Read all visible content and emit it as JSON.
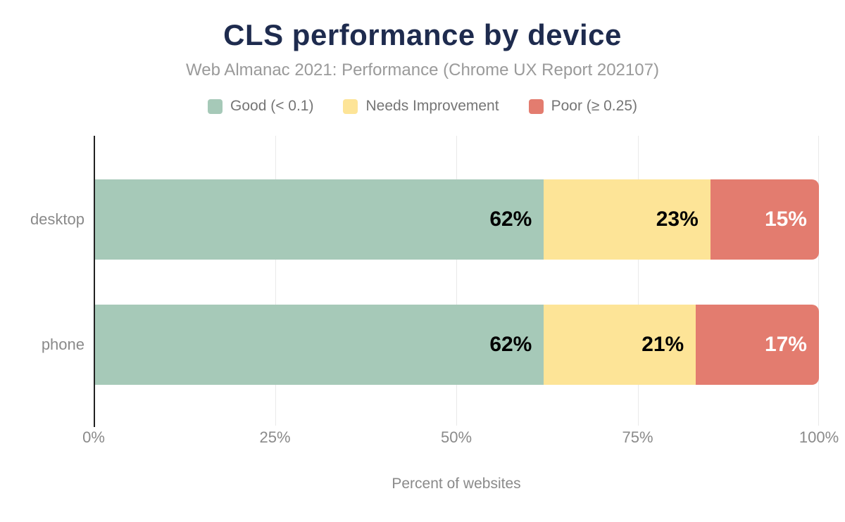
{
  "chart_data": {
    "type": "bar",
    "stacked": true,
    "orientation": "horizontal",
    "title": "CLS performance by device",
    "subtitle": "Web Almanac 2021: Performance (Chrome UX Report 202107)",
    "xlabel": "Percent of websites",
    "categories": [
      "desktop",
      "phone"
    ],
    "series": [
      {
        "name": "Good (< 0.1)",
        "color": "#a6c9b8",
        "label_color": "#000000",
        "values": [
          62,
          62
        ]
      },
      {
        "name": "Needs Improvement",
        "color": "#fde497",
        "label_color": "#000000",
        "values": [
          23,
          21
        ]
      },
      {
        "name": "Poor (≥ 0.25)",
        "color": "#e37c6f",
        "label_color": "#ffffff",
        "values": [
          15,
          17
        ]
      }
    ],
    "data_labels": [
      [
        "62%",
        "23%",
        "15%"
      ],
      [
        "62%",
        "21%",
        "17%"
      ]
    ],
    "x_ticks": [
      "0%",
      "25%",
      "50%",
      "75%",
      "100%"
    ],
    "xlim": [
      0,
      100
    ],
    "grid": true,
    "legend_position": "top"
  },
  "colors": {
    "title": "#1e2b4e",
    "subtitle": "#9a9a9a",
    "axis_text": "#8a8a8a",
    "legend_text": "#757575",
    "gridline": "#e9e9e9",
    "axis_line": "#212121",
    "background": "#ffffff"
  }
}
